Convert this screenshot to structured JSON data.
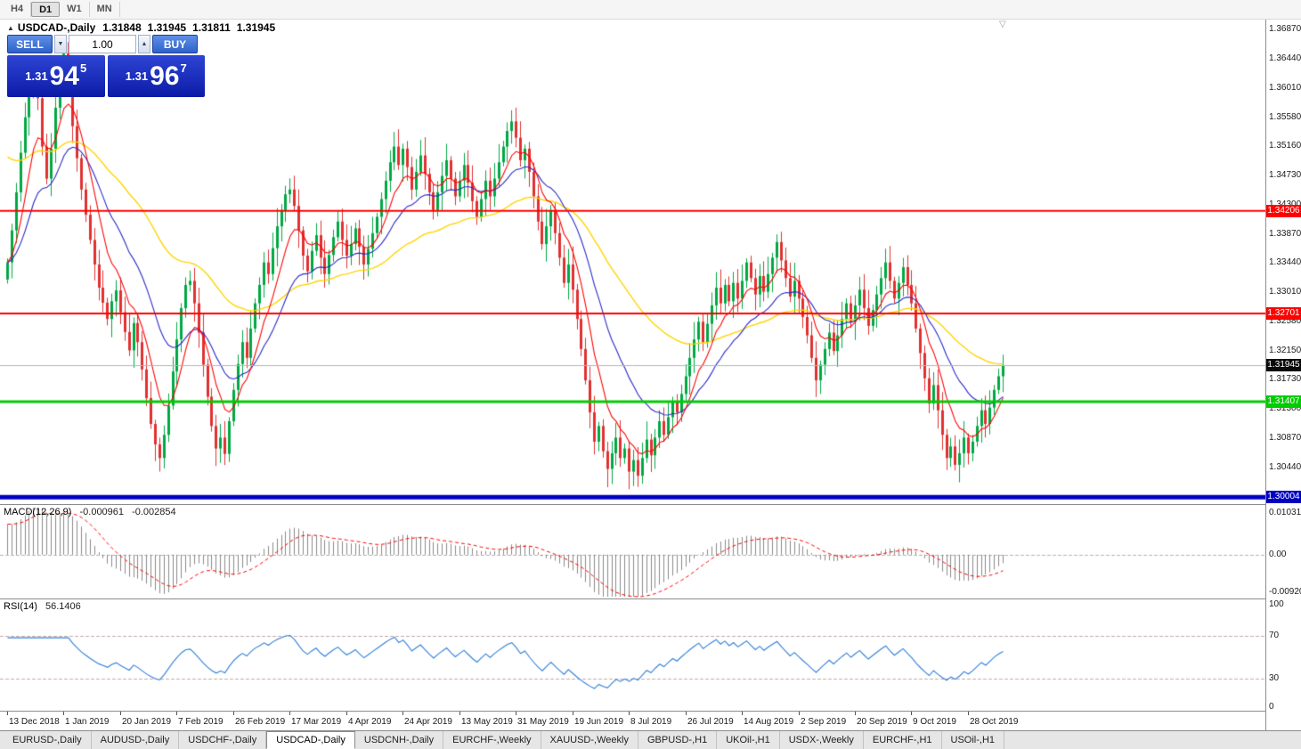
{
  "toolbar": {
    "periods": [
      {
        "label": "H4",
        "active": false
      },
      {
        "label": "D1",
        "active": true
      },
      {
        "label": "W1",
        "active": false
      },
      {
        "label": "MN",
        "active": false
      }
    ]
  },
  "icons": {
    "one_click_toggle": "▲",
    "volume_down": "▼",
    "volume_up": "▲",
    "shift_marker": "▽"
  },
  "chart_window": {
    "symbol_title": "USDCAD-,Daily",
    "ohlc": [
      "1.31848",
      "1.31945",
      "1.31811",
      "1.31945"
    ]
  },
  "trade_panel": {
    "sell_label": "SELL",
    "buy_label": "BUY",
    "volume": "1.00",
    "bid": {
      "prefix": "1.31",
      "big": "94",
      "sup": "5",
      "full": "1.31945"
    },
    "ask": {
      "prefix": "1.31",
      "big": "96",
      "sup": "7",
      "full": "1.31967"
    }
  },
  "price_axis": {
    "labels": [
      "1.36870",
      "1.36440",
      "1.36010",
      "1.35580",
      "1.35160",
      "1.34730",
      "1.34300",
      "1.33870",
      "1.33440",
      "1.33010",
      "1.32580",
      "1.32150",
      "1.31730",
      "1.31300",
      "1.30870",
      "1.30440"
    ]
  },
  "time_axis": {
    "labels": [
      "13 Dec 2018",
      "1 Jan 2019",
      "20 Jan 2019",
      "7 Feb 2019",
      "26 Feb 2019",
      "17 Mar 2019",
      "4 Apr 2019",
      "24 Apr 2019",
      "13 May 2019",
      "31 May 2019",
      "19 Jun 2019",
      "8 Jul 2019",
      "26 Jul 2019",
      "14 Aug 2019",
      "2 Sep 2019",
      "20 Sep 2019",
      "9 Oct 2019",
      "28 Oct 2019"
    ]
  },
  "levels": [
    {
      "name": "resistance-upper",
      "label": "1.34206",
      "value": 1.34206,
      "color": "#ff0000",
      "width": 2
    },
    {
      "name": "resistance-mid",
      "label": "1.32701",
      "value": 1.32701,
      "color": "#ff0000",
      "width": 2
    },
    {
      "name": "support-green",
      "label": "1.31407",
      "value": 1.31407,
      "color": "#00cc00",
      "width": 3
    },
    {
      "name": "support-blue",
      "label": "1.30004",
      "value": 1.30004,
      "color": "#0000c0",
      "width": 5
    }
  ],
  "current_price": {
    "value": 1.31945,
    "label": "1.31945",
    "tag_bg": "#0a0a0a",
    "line_color": "#b4b4b4"
  },
  "chart_data": {
    "type": "candlestick",
    "symbol": "USDCAD-",
    "timeframe": "Daily",
    "price_range": {
      "max": 1.37014,
      "min": 1.29904
    },
    "first_open": 1.332,
    "closes": [
      1.3345,
      1.3392,
      1.3448,
      1.3506,
      1.3558,
      1.3608,
      1.3634,
      1.3586,
      1.3515,
      1.3468,
      1.3512,
      1.3572,
      1.3628,
      1.3652,
      1.3598,
      1.3545,
      1.3498,
      1.3452,
      1.3415,
      1.3378,
      1.3342,
      1.3308,
      1.3286,
      1.3262,
      1.3288,
      1.3304,
      1.3272,
      1.3243,
      1.3216,
      1.3256,
      1.3228,
      1.3188,
      1.3146,
      1.3108,
      1.3078,
      1.3058,
      1.3092,
      1.3135,
      1.3185,
      1.3232,
      1.3278,
      1.3312,
      1.3318,
      1.3285,
      1.3242,
      1.3195,
      1.3148,
      1.3105,
      1.3072,
      1.3088,
      1.3064,
      1.3112,
      1.3158,
      1.3196,
      1.3228,
      1.3205,
      1.3248,
      1.3285,
      1.3312,
      1.3345,
      1.3328,
      1.3366,
      1.3398,
      1.3422,
      1.3445,
      1.3452,
      1.3428,
      1.3392,
      1.3355,
      1.3332,
      1.3362,
      1.3385,
      1.3352,
      1.3328,
      1.3356,
      1.3382,
      1.3405,
      1.3378,
      1.3355,
      1.3372,
      1.3395,
      1.3368,
      1.3342,
      1.3365,
      1.3388,
      1.3412,
      1.3438,
      1.3465,
      1.3492,
      1.3515,
      1.3488,
      1.3512,
      1.3485,
      1.3452,
      1.3478,
      1.3502,
      1.3475,
      1.3448,
      1.3422,
      1.3448,
      1.3472,
      1.3495,
      1.3468,
      1.3442,
      1.3465,
      1.3488,
      1.3462,
      1.3435,
      1.3412,
      1.3438,
      1.3465,
      1.3442,
      1.3468,
      1.3492,
      1.3515,
      1.3538,
      1.3552,
      1.3528,
      1.3495,
      1.3512,
      1.3478,
      1.3442,
      1.3405,
      1.3372,
      1.3398,
      1.3422,
      1.3388,
      1.3352,
      1.3315,
      1.3342,
      1.3305,
      1.3262,
      1.3218,
      1.3172,
      1.3125,
      1.3082,
      1.3105,
      1.3068,
      1.3042,
      1.3065,
      1.3088,
      1.3058,
      1.3072,
      1.3038,
      1.3055,
      1.3032,
      1.3058,
      1.3085,
      1.3062,
      1.3088,
      1.3112,
      1.3092,
      1.3118,
      1.3142,
      1.3125,
      1.3152,
      1.3178,
      1.3205,
      1.3232,
      1.3258,
      1.3228,
      1.3255,
      1.3282,
      1.3308,
      1.3285,
      1.3312,
      1.3288,
      1.3315,
      1.3292,
      1.3318,
      1.3345,
      1.3322,
      1.3298,
      1.3325,
      1.3302,
      1.3328,
      1.3352,
      1.3375,
      1.3348,
      1.3322,
      1.3295,
      1.3318,
      1.3292,
      1.3265,
      1.3238,
      1.3205,
      1.3172,
      1.3195,
      1.3218,
      1.3242,
      1.3215,
      1.3238,
      1.3262,
      1.3285,
      1.3258,
      1.3282,
      1.3305,
      1.3278,
      1.3252,
      1.3275,
      1.3298,
      1.3322,
      1.3345,
      1.3318,
      1.3292,
      1.3315,
      1.3338,
      1.3312,
      1.3285,
      1.3248,
      1.3212,
      1.3175,
      1.3138,
      1.3165,
      1.3128,
      1.3092,
      1.3058,
      1.3075,
      1.3048,
      1.3065,
      1.3088,
      1.3065,
      1.3082,
      1.3105,
      1.3128,
      1.3108,
      1.3132,
      1.3158,
      1.3178,
      1.31945
    ],
    "colors": {
      "bull": "#00a843",
      "bear": "#e03030",
      "ma_fast": "#ff0000",
      "ma_mid": "#2828c8",
      "ma_slow": "#ffd400",
      "macd_hist": "#8a8a8a",
      "macd_signal": "#ff0000",
      "rsi": "#2f7ed8"
    },
    "moving_averages": [
      {
        "name": "ma-slow",
        "color": "#ffd400",
        "period": 55,
        "seed": 1.35,
        "width": 1.4
      },
      {
        "name": "ma-mid",
        "color": "#2828c8",
        "period": 20,
        "width": 1.1
      },
      {
        "name": "ma-fast",
        "color": "#ff0000",
        "period": 8,
        "width": 1.1
      }
    ],
    "macd": {
      "label": "MACD(12,26,9)",
      "value_main": "-0.000961",
      "value_signal": "-0.002854",
      "axis_labels": [
        "0.010311",
        "0.00",
        "-0.009204"
      ],
      "max": 0.010311,
      "min": -0.009204
    },
    "rsi": {
      "label": "RSI(14)",
      "value": "56.1406",
      "axis_labels": [
        "100",
        "70",
        "30",
        "0"
      ],
      "levels": [
        70,
        30
      ]
    }
  },
  "tabs": {
    "items": [
      {
        "label": "EURUSD-,Daily",
        "active": false
      },
      {
        "label": "AUDUSD-,Daily",
        "active": false
      },
      {
        "label": "USDCHF-,Daily",
        "active": false
      },
      {
        "label": "USDCAD-,Daily",
        "active": true
      },
      {
        "label": "USDCNH-,Daily",
        "active": false
      },
      {
        "label": "EURCHF-,Weekly",
        "active": false
      },
      {
        "label": "XAUUSD-,Weekly",
        "active": false
      },
      {
        "label": "GBPUSD-,H1",
        "active": false
      },
      {
        "label": "UKOil-,H1",
        "active": false
      },
      {
        "label": "USDX-,Weekly",
        "active": false
      },
      {
        "label": "EURCHF-,H1",
        "active": false
      },
      {
        "label": "USOil-,H1",
        "active": false
      }
    ]
  }
}
